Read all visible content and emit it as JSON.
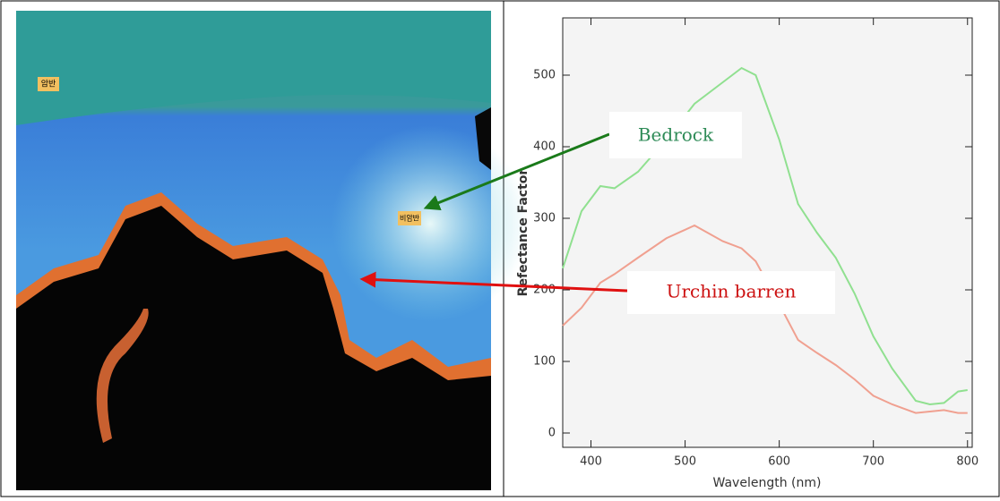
{
  "image_labels": [
    "암반",
    "비암반"
  ],
  "chart_data": {
    "type": "line",
    "x_label": "Wavelength (nm)",
    "y_label": "Refectance Factor",
    "x": [
      370,
      390,
      410,
      425,
      450,
      480,
      510,
      540,
      560,
      575,
      600,
      620,
      640,
      660,
      680,
      700,
      720,
      745,
      760,
      775,
      790,
      800
    ],
    "series": [
      {
        "name": "Bedrock",
        "color": "#90e090",
        "label_color": "#2e8b57",
        "arrow_color": "#1a7a1a",
        "values": [
          230,
          310,
          345,
          342,
          365,
          410,
          460,
          490,
          510,
          500,
          410,
          320,
          280,
          245,
          195,
          135,
          90,
          45,
          40,
          42,
          58,
          60
        ]
      },
      {
        "name": "Urchin barren",
        "color": "#f0a090",
        "label_color": "#cc1010",
        "arrow_color": "#e01010",
        "values": [
          150,
          175,
          210,
          222,
          245,
          272,
          290,
          268,
          258,
          240,
          180,
          130,
          112,
          95,
          75,
          52,
          40,
          28,
          30,
          32,
          28,
          28
        ]
      }
    ],
    "xlim": [
      370,
      805
    ],
    "ylim": [
      -20,
      580
    ],
    "xticks": [
      400,
      500,
      600,
      700,
      800
    ],
    "yticks": [
      0,
      100,
      200,
      300,
      400,
      500
    ]
  }
}
